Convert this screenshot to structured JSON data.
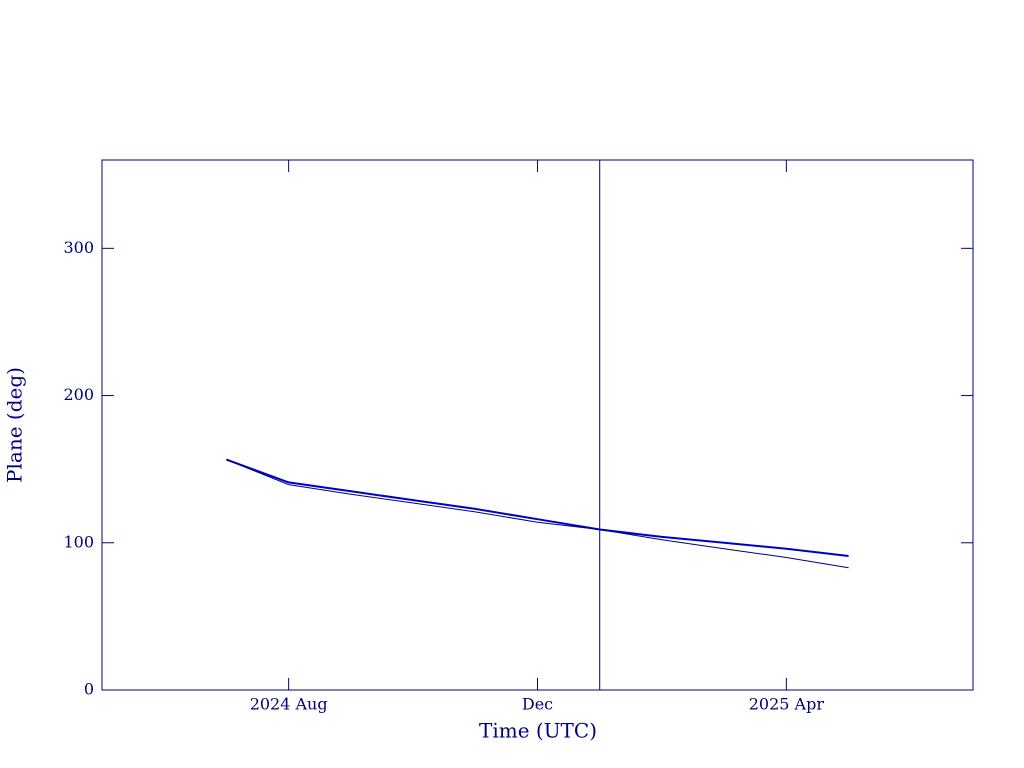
{
  "chart_data": {
    "type": "line",
    "x_label": "Time (UTC)",
    "y_label": "Plane (deg)",
    "x": [
      "2024-07",
      "2024-08",
      "2024-09",
      "2024-10",
      "2024-11",
      "2024-12",
      "2025-01",
      "2025-02",
      "2025-03",
      "2025-04",
      "2025-05"
    ],
    "series": [
      {
        "color": "#0000cc",
        "width": 2,
        "values": [
          156.5,
          141,
          135,
          129,
          123,
          116,
          109,
          104,
          100,
          96,
          91
        ]
      },
      {
        "color": "#000080",
        "width": 1,
        "values": [
          156.5,
          139.5,
          133,
          127,
          121,
          114,
          109,
          102,
          96,
          90,
          83
        ]
      }
    ],
    "vline": "2025-01",
    "xlim": [
      "2024-05",
      "2025-07"
    ],
    "xticks": [
      {
        "value": "2024-08",
        "label": "2024 Aug"
      },
      {
        "value": "2024-12",
        "label": "Dec"
      },
      {
        "value": "2025-04",
        "label": "2025 Apr"
      }
    ],
    "ylim": [
      0,
      360
    ],
    "yticks": [
      0,
      100,
      200,
      300
    ]
  }
}
